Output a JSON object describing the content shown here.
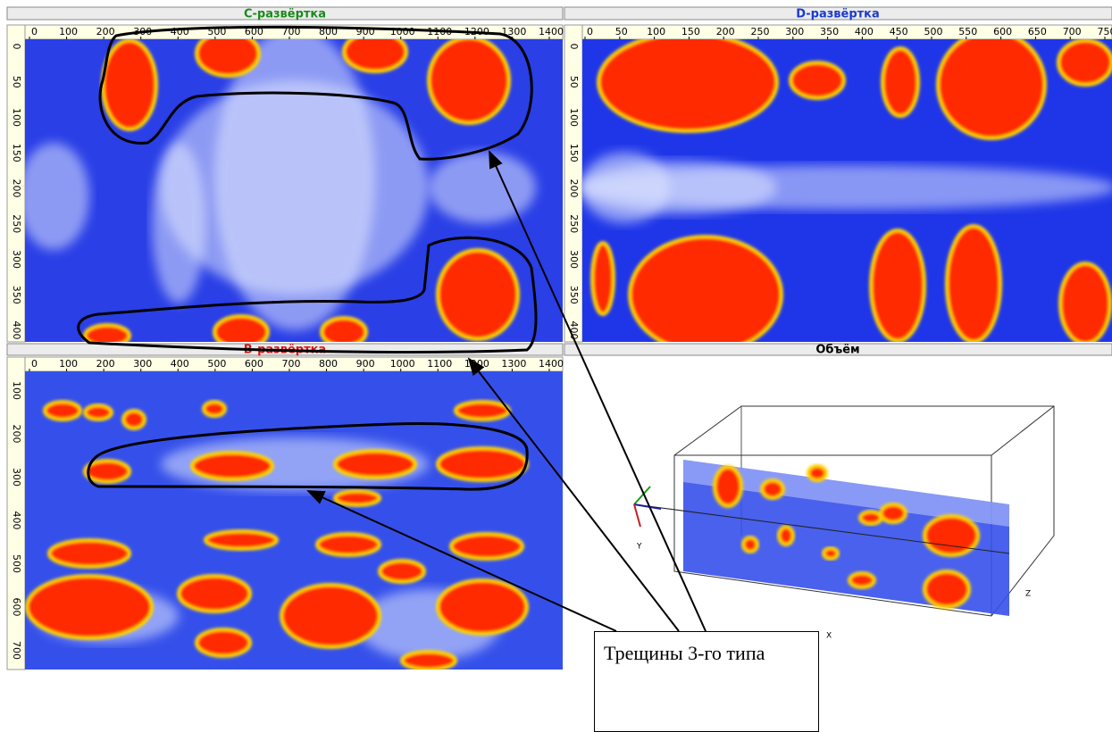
{
  "panels": {
    "c_scan": {
      "title": "С-развёртка",
      "x_ticks": [
        0,
        100,
        200,
        300,
        400,
        500,
        600,
        700,
        800,
        900,
        1000,
        1100,
        1200,
        1300,
        1400
      ],
      "y_ticks": [
        0,
        50,
        100,
        150,
        200,
        250,
        300,
        350,
        400
      ]
    },
    "d_scan": {
      "title": "D-развёртка",
      "x_ticks": [
        0,
        50,
        100,
        150,
        200,
        250,
        300,
        350,
        400,
        450,
        500,
        550,
        600,
        650,
        700,
        750
      ],
      "y_ticks": [
        0,
        50,
        100,
        150,
        200,
        250,
        300,
        350,
        400
      ]
    },
    "b_scan": {
      "title": "В-развёртка",
      "x_ticks": [
        0,
        100,
        200,
        300,
        400,
        500,
        600,
        700,
        800,
        900,
        1000,
        1100,
        1200,
        1300,
        1400
      ],
      "y_ticks": [
        100,
        200,
        300,
        400,
        500,
        600,
        700
      ]
    },
    "volume": {
      "title": "Объём",
      "axis_labels": [
        "Y",
        "Z",
        "X"
      ]
    }
  },
  "annotation": {
    "text": "Трещины 3-го типа"
  }
}
